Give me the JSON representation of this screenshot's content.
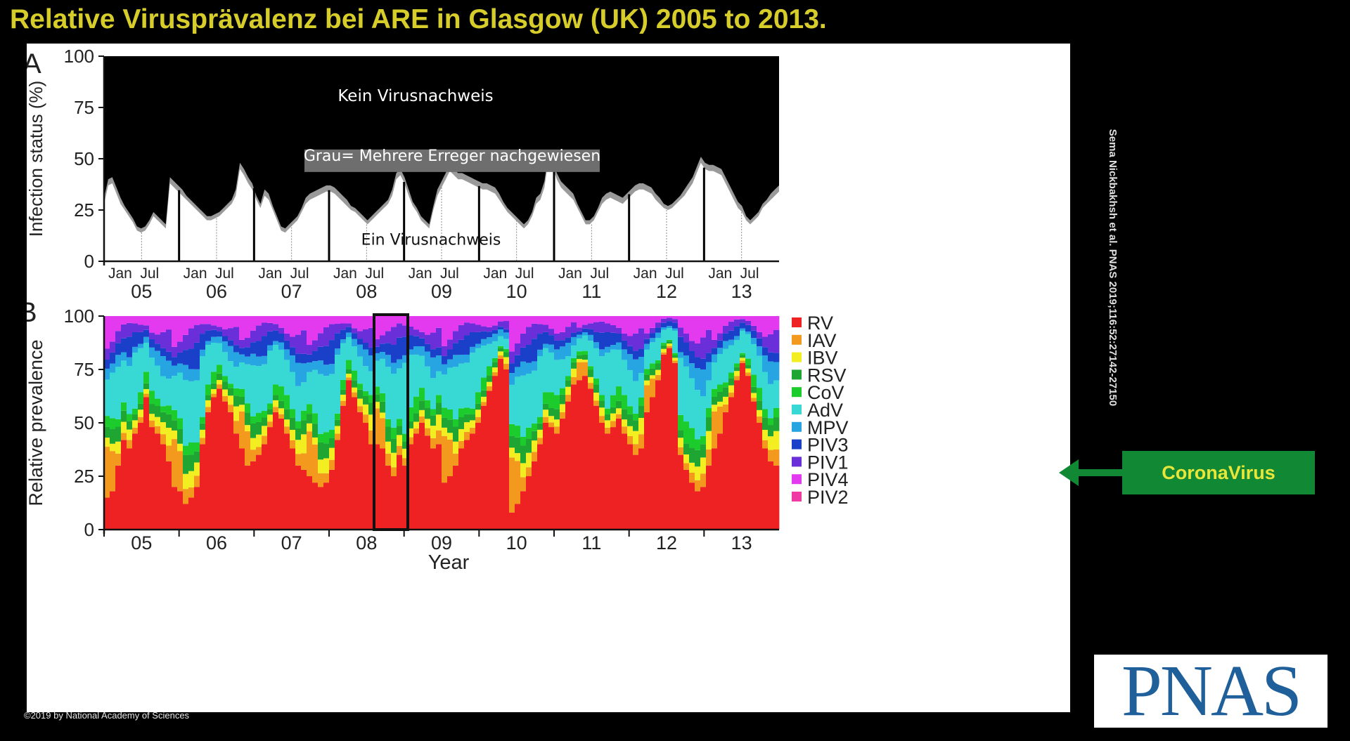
{
  "title": "Relative Virusprävalenz bei ARE in Glasgow (UK) 2005 to 2013.",
  "copyright": "©2019 by National Academy of Sciences",
  "citation": "Sema Nickbakhsh et al. PNAS 2019;116:52:27142-27150",
  "callout": {
    "label": "CoronaVirus",
    "color": "#118833",
    "text_color": "#e8e63a"
  },
  "logo": "PNAS",
  "chart_data": [
    {
      "type": "area",
      "panel_label": "A",
      "ylabel": "Infection status (%)",
      "ylim": [
        0,
        100
      ],
      "yticks": [
        0,
        25,
        50,
        75,
        100
      ],
      "xticks_months": [
        "Jan",
        "Jul"
      ],
      "years": [
        "05",
        "06",
        "07",
        "08",
        "09",
        "10",
        "11",
        "12",
        "13"
      ],
      "annotations": {
        "top": "Kein Virusnachweis",
        "middle": "Grau= Mehrere Erreger nachgewiesen",
        "bottom": "Ein Virusnachweis"
      },
      "colors": {
        "none": "#000000",
        "single": "#ffffff",
        "multiple": "#9a9a9a"
      },
      "series": [
        {
          "name": "Ein Virusnachweis",
          "values": [
            28,
            37,
            38,
            33,
            28,
            25,
            22,
            19,
            15,
            14,
            15,
            18,
            22,
            20,
            18,
            16,
            38,
            36,
            34,
            32,
            30,
            28,
            26,
            24,
            22,
            20,
            20,
            21,
            22,
            24,
            26,
            28,
            32,
            45,
            42,
            38,
            35,
            30,
            26,
            32,
            30,
            25,
            20,
            15,
            14,
            16,
            18,
            20,
            24,
            28,
            30,
            31,
            32,
            33,
            34,
            34,
            33,
            31,
            29,
            27,
            25,
            24,
            22,
            20,
            18,
            20,
            22,
            24,
            26,
            28,
            32,
            40,
            42,
            38,
            32,
            27,
            24,
            20,
            18,
            16,
            25,
            32,
            36,
            40,
            44,
            42,
            40,
            40,
            39,
            38,
            37,
            36,
            35,
            35,
            34,
            33,
            30,
            27,
            24,
            22,
            20,
            18,
            16,
            18,
            22,
            28,
            30,
            36,
            50,
            46,
            40,
            36,
            34,
            32,
            30,
            26,
            22,
            18,
            18,
            20,
            24,
            28,
            30,
            31,
            30,
            29,
            28,
            30,
            32,
            34,
            35,
            35,
            34,
            33,
            30,
            28,
            26,
            25,
            26,
            28,
            30,
            32,
            35,
            38,
            43,
            48,
            45,
            44,
            44,
            43,
            42,
            38,
            34,
            30,
            26,
            24,
            20,
            18,
            20,
            22,
            26,
            28,
            30,
            32,
            34
          ]
        },
        {
          "name": "Mehrere Erreger",
          "values": [
            3,
            3,
            3,
            3,
            3,
            2,
            2,
            2,
            2,
            2,
            2,
            2,
            2,
            2,
            2,
            2,
            3,
            3,
            3,
            3,
            2,
            2,
            2,
            2,
            2,
            2,
            2,
            2,
            2,
            2,
            2,
            2,
            3,
            3,
            3,
            3,
            3,
            2,
            2,
            3,
            3,
            2,
            2,
            2,
            2,
            2,
            2,
            2,
            2,
            3,
            3,
            3,
            3,
            3,
            3,
            3,
            3,
            3,
            3,
            3,
            2,
            2,
            2,
            2,
            2,
            2,
            2,
            2,
            2,
            2,
            3,
            3,
            3,
            3,
            3,
            2,
            2,
            2,
            2,
            2,
            2,
            3,
            3,
            3,
            3,
            3,
            3,
            3,
            3,
            3,
            3,
            3,
            3,
            3,
            3,
            3,
            3,
            2,
            2,
            2,
            2,
            2,
            2,
            2,
            2,
            3,
            3,
            3,
            3,
            3,
            3,
            3,
            3,
            3,
            3,
            2,
            2,
            2,
            2,
            2,
            2,
            3,
            3,
            3,
            3,
            3,
            3,
            3,
            3,
            3,
            3,
            3,
            3,
            3,
            3,
            3,
            2,
            2,
            2,
            2,
            2,
            3,
            3,
            3,
            3,
            3,
            3,
            3,
            3,
            3,
            3,
            3,
            3,
            3,
            3,
            3,
            2,
            2,
            2,
            2,
            2,
            2,
            3,
            3,
            3
          ]
        }
      ]
    },
    {
      "type": "bar",
      "stacked": true,
      "panel_label": "B",
      "ylabel": "Relative prevalence",
      "xlabel": "Year",
      "ylim": [
        0,
        100
      ],
      "yticks": [
        0,
        25,
        50,
        75,
        100
      ],
      "categories": [
        "05",
        "06",
        "07",
        "08",
        "09",
        "10",
        "11",
        "12",
        "13"
      ],
      "highlight": {
        "category": "09",
        "from_month": 1,
        "to_month": 6
      },
      "legend": [
        {
          "name": "RV",
          "color": "#ee2222"
        },
        {
          "name": "IAV",
          "color": "#f39a1e"
        },
        {
          "name": "IBV",
          "color": "#f2ee22"
        },
        {
          "name": "RSV",
          "color": "#1fa532"
        },
        {
          "name": "CoV",
          "color": "#1ccb2c"
        },
        {
          "name": "AdV",
          "color": "#38d8d4"
        },
        {
          "name": "MPV",
          "color": "#27a5e2"
        },
        {
          "name": "PIV3",
          "color": "#1a3fc8"
        },
        {
          "name": "PIV1",
          "color": "#6a2fd8"
        },
        {
          "name": "PIV4",
          "color": "#e43aef"
        },
        {
          "name": "PIV2",
          "color": "#ef3aa4"
        }
      ],
      "monthly_rv": [
        15,
        18,
        30,
        42,
        38,
        45,
        50,
        62,
        48,
        45,
        40,
        32,
        20,
        18,
        12,
        15,
        20,
        40,
        55,
        62,
        66,
        60,
        55,
        45,
        38,
        30,
        32,
        35,
        40,
        48,
        55,
        52,
        45,
        38,
        30,
        28,
        25,
        22,
        20,
        22,
        28,
        42,
        58,
        70,
        62,
        55,
        50,
        40,
        40,
        38,
        30,
        25,
        35,
        30,
        40,
        45,
        50,
        44,
        38,
        40,
        22,
        25,
        30,
        38,
        42,
        45,
        50,
        58,
        65,
        72,
        80,
        75,
        8,
        12,
        18,
        25,
        32,
        40,
        50,
        48,
        45,
        52,
        60,
        68,
        70,
        72,
        66,
        58,
        50,
        45,
        48,
        52,
        45,
        40,
        35,
        38,
        55,
        62,
        70,
        82,
        85,
        78,
        35,
        28,
        22,
        18,
        20,
        30,
        38,
        45,
        55,
        62,
        70,
        78,
        72,
        60,
        50,
        38,
        32,
        30
      ],
      "monthly_other": [
        [
          28,
          22,
          8,
          5,
          5,
          4,
          4,
          3,
          4,
          4,
          5,
          7
        ],
        [
          5,
          4,
          8,
          8,
          6,
          5,
          5,
          4,
          4,
          5,
          6,
          8
        ],
        [
          6,
          8,
          10,
          8,
          5,
          4,
          4,
          5,
          6,
          6,
          5,
          6
        ],
        [
          6,
          6,
          5,
          6,
          4,
          4,
          8,
          10,
          8,
          4,
          3,
          4
        ],
        [
          20,
          25,
          35,
          30,
          28,
          38,
          30,
          25,
          20,
          18,
          15,
          12
        ],
        [
          6,
          5,
          8,
          6,
          5,
          4,
          3,
          5,
          6,
          8,
          10,
          8
        ],
        [
          5,
          6,
          8,
          10,
          12,
          10,
          8,
          6,
          5,
          4,
          4,
          4
        ],
        [
          6,
          6,
          8,
          10,
          8,
          6,
          5,
          4,
          4,
          5,
          8,
          10
        ],
        [
          18,
          14,
          10,
          6,
          4,
          5,
          6,
          8,
          10,
          10,
          8,
          6
        ]
      ]
    }
  ]
}
